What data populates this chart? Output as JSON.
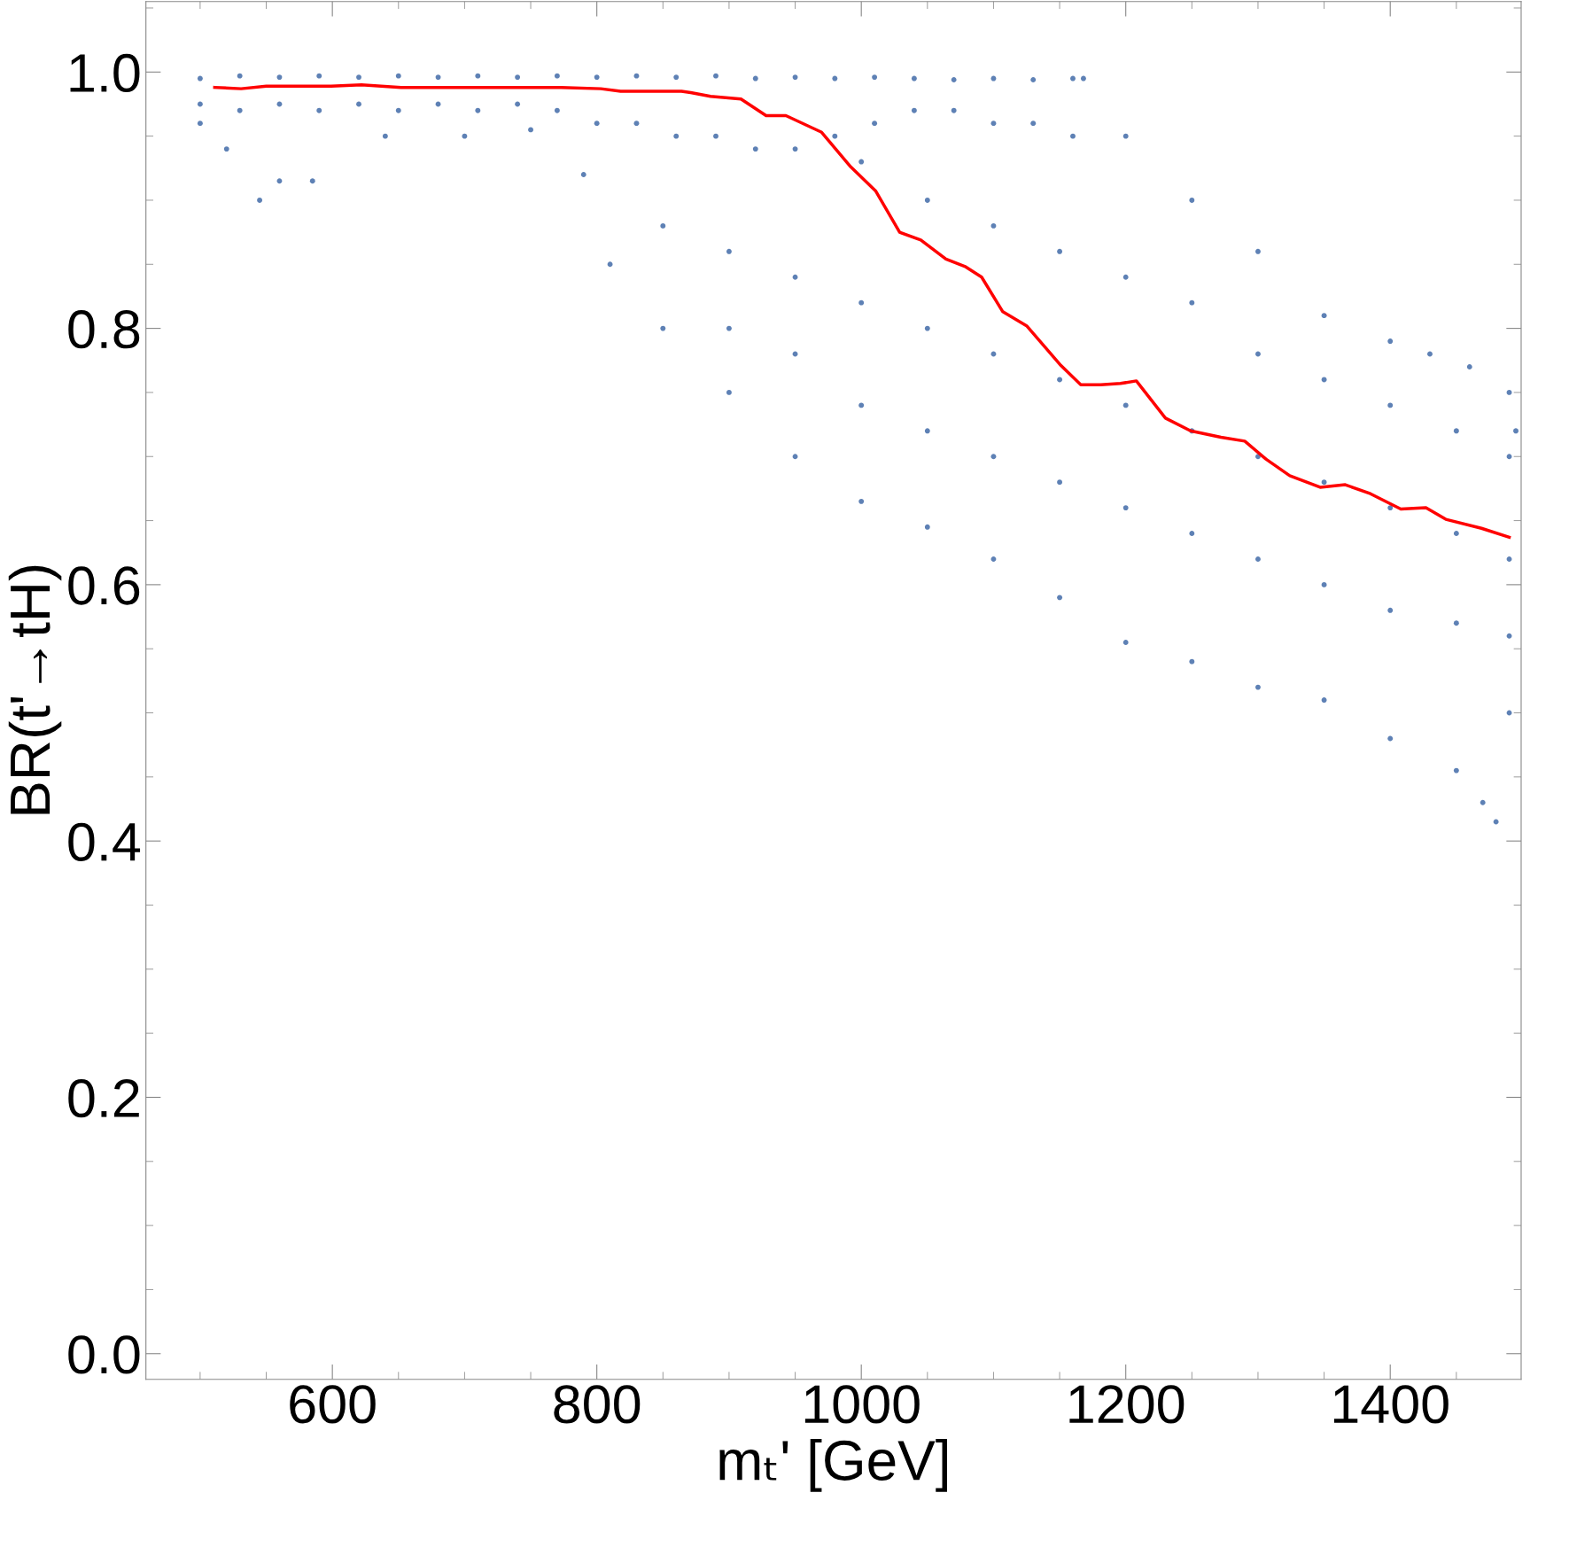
{
  "chart_data": {
    "type": "scatter",
    "xlabel": "mₜ' [GeV]",
    "ylabel": "BR(t'→tH)",
    "xlim": [
      459,
      1499
    ],
    "ylim": [
      -0.02,
      1.055
    ],
    "xticks": [
      600,
      800,
      1000,
      1200,
      1400
    ],
    "yticks": [
      {
        "value": 0.0,
        "label": "0.0"
      },
      0.2,
      0.4,
      0.6,
      0.8,
      {
        "value": 1.0,
        "label": "1.0"
      }
    ],
    "grid": false,
    "legend": false,
    "series": [
      {
        "color": "#5e81b5",
        "marker": "circle",
        "x": [
          500,
          530,
          560,
          590,
          620,
          650,
          680,
          710,
          740,
          770,
          800,
          830,
          860,
          890,
          920,
          950,
          980,
          1010,
          1040,
          1070,
          1100,
          1130,
          1160,
          1168,
          500,
          530,
          560,
          590,
          620,
          650,
          680,
          710,
          740,
          770,
          800,
          830,
          860,
          890,
          920,
          950,
          980,
          1010,
          1040,
          1070,
          1100,
          1130,
          1160,
          500,
          520,
          545,
          560,
          585,
          640,
          700,
          750,
          790,
          810,
          850,
          900,
          950,
          1000,
          1050,
          1100,
          1150,
          1200,
          1250,
          1300,
          1350,
          1400,
          1450,
          1470,
          1480,
          1490,
          1200,
          1250,
          1300,
          1350,
          1400,
          1430,
          1460,
          1490,
          1495,
          850,
          900,
          950,
          1000,
          1050,
          1100,
          1150,
          1200,
          1250,
          1300,
          1350,
          1400,
          1450,
          1490,
          900,
          950,
          1000,
          1050,
          1100,
          1150,
          1200,
          1250,
          1300,
          1350,
          1400,
          1450,
          1490,
          1000,
          1050,
          1100,
          1150,
          1200,
          1250,
          1300,
          1350,
          1400,
          1450,
          1490
        ],
        "values": [
          0.995,
          0.997,
          0.996,
          0.997,
          0.996,
          0.997,
          0.996,
          0.997,
          0.996,
          0.997,
          0.996,
          0.997,
          0.996,
          0.997,
          0.995,
          0.996,
          0.995,
          0.996,
          0.995,
          0.994,
          0.995,
          0.994,
          0.995,
          0.995,
          0.975,
          0.97,
          0.975,
          0.97,
          0.975,
          0.97,
          0.975,
          0.97,
          0.975,
          0.97,
          0.96,
          0.96,
          0.95,
          0.95,
          0.94,
          0.94,
          0.95,
          0.96,
          0.97,
          0.97,
          0.96,
          0.96,
          0.95,
          0.96,
          0.94,
          0.9,
          0.915,
          0.915,
          0.95,
          0.95,
          0.955,
          0.92,
          0.85,
          0.8,
          0.75,
          0.7,
          0.665,
          0.645,
          0.62,
          0.59,
          0.555,
          0.54,
          0.52,
          0.51,
          0.48,
          0.455,
          0.43,
          0.415,
          0.5,
          0.95,
          0.9,
          0.86,
          0.81,
          0.79,
          0.78,
          0.77,
          0.75,
          0.72,
          0.88,
          0.86,
          0.84,
          0.82,
          0.8,
          0.78,
          0.76,
          0.74,
          0.72,
          0.7,
          0.68,
          0.66,
          0.64,
          0.62,
          0.8,
          0.78,
          0.74,
          0.72,
          0.7,
          0.68,
          0.66,
          0.64,
          0.62,
          0.6,
          0.58,
          0.57,
          0.56,
          0.93,
          0.9,
          0.88,
          0.86,
          0.84,
          0.82,
          0.78,
          0.76,
          0.74,
          0.72,
          0.7
        ]
      },
      {
        "type": "line",
        "color": "#ff0000",
        "x": [
          511,
          531,
          550,
          599,
          622,
          652,
          712,
          773,
          803,
          818,
          864,
          871,
          886,
          909,
          928,
          943,
          970,
          992,
          1011,
          1029,
          1045,
          1064,
          1079,
          1091,
          1107,
          1125,
          1151,
          1166,
          1181,
          1196,
          1208,
          1230,
          1249,
          1272,
          1290,
          1306,
          1324,
          1347,
          1366,
          1385,
          1408,
          1427,
          1442,
          1469,
          1490
        ],
        "values": [
          0.988,
          0.987,
          0.989,
          0.989,
          0.99,
          0.988,
          0.988,
          0.988,
          0.987,
          0.985,
          0.985,
          0.984,
          0.981,
          0.979,
          0.966,
          0.966,
          0.953,
          0.926,
          0.907,
          0.875,
          0.869,
          0.854,
          0.848,
          0.84,
          0.813,
          0.802,
          0.771,
          0.756,
          0.756,
          0.757,
          0.759,
          0.73,
          0.72,
          0.715,
          0.712,
          0.698,
          0.685,
          0.676,
          0.678,
          0.671,
          0.659,
          0.66,
          0.651,
          0.644,
          0.637
        ]
      }
    ]
  }
}
